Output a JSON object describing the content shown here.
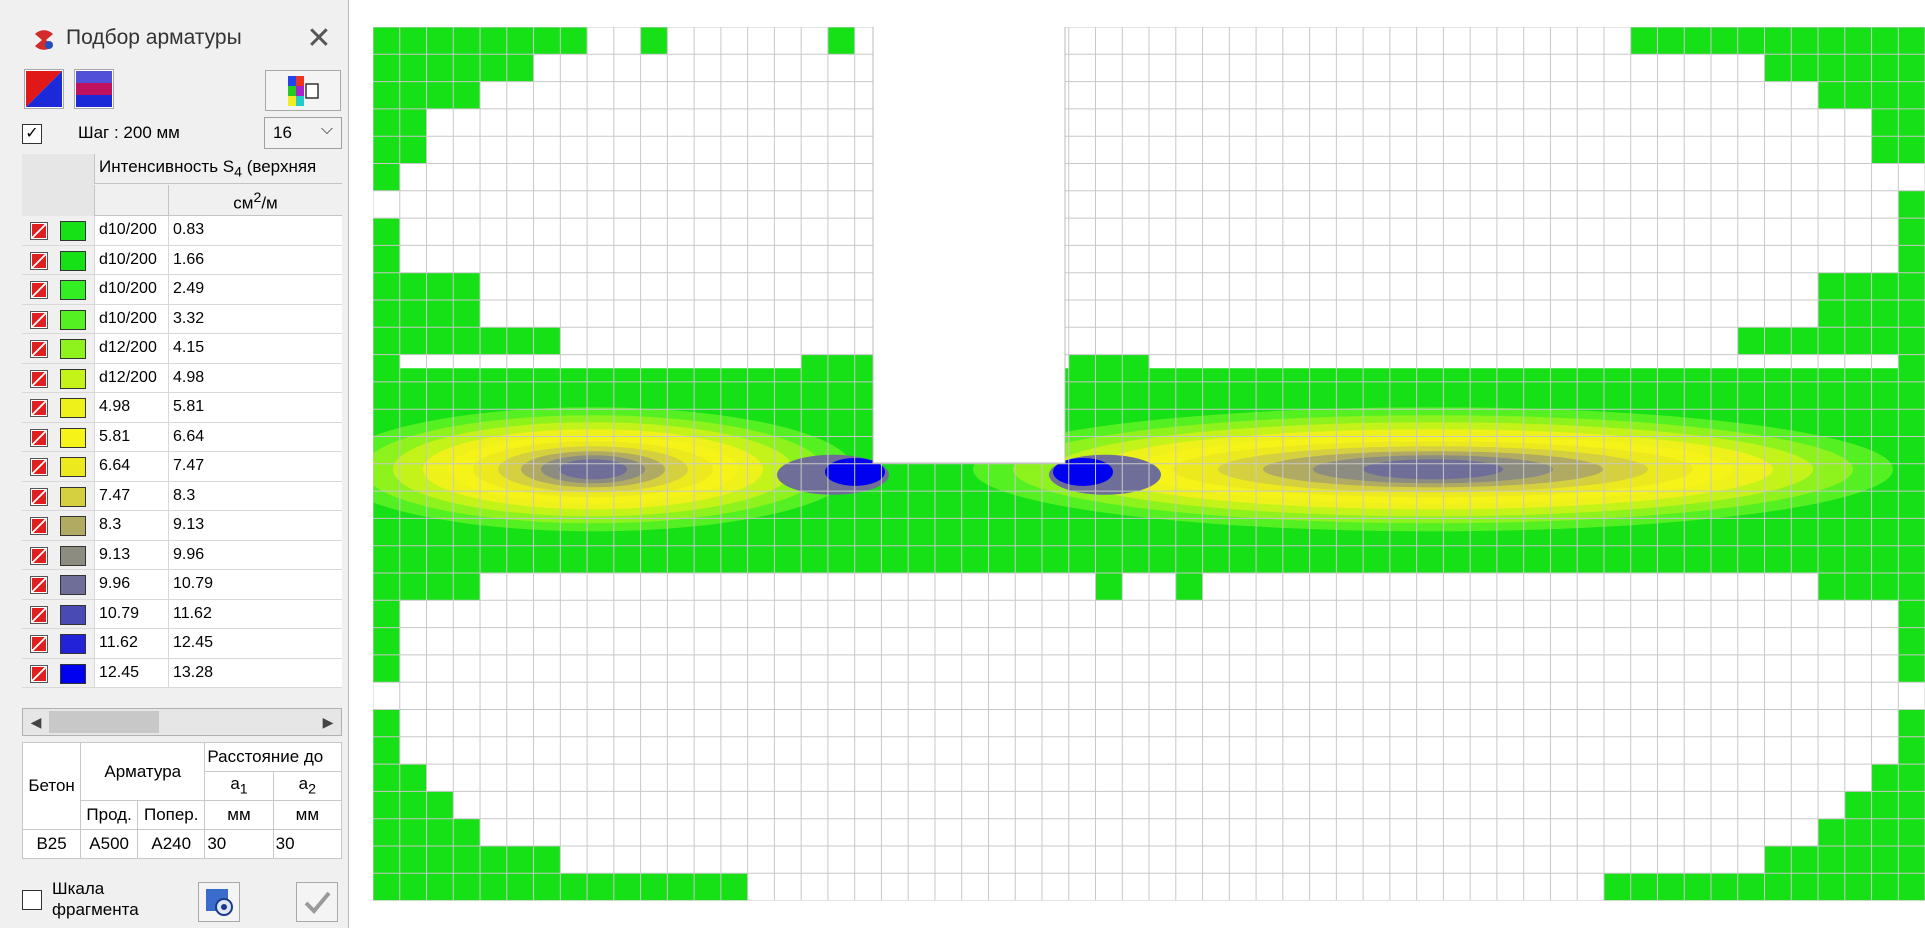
{
  "window": {
    "title": "Подбор арматуры",
    "close_symbol": "✕"
  },
  "step": {
    "checked": true,
    "label": "Шаг : 200 мм",
    "count_value": "16"
  },
  "scale_table": {
    "header": "Интенсивность S",
    "header_sub": "4",
    "header_suffix": " (верхняя",
    "unit": "см",
    "unit_sup": "2",
    "unit_suffix": "/м",
    "rows": [
      {
        "color": "#16e016",
        "c1": "d10/200",
        "c2": "0.83"
      },
      {
        "color": "#16e016",
        "c1": "d10/200",
        "c2": "1.66"
      },
      {
        "color": "#33ee22",
        "c1": "d10/200",
        "c2": "2.49"
      },
      {
        "color": "#55f022",
        "c1": "d10/200",
        "c2": "3.32"
      },
      {
        "color": "#8ef21c",
        "c1": "d12/200",
        "c2": "4.15"
      },
      {
        "color": "#c4f31a",
        "c1": "d12/200",
        "c2": "4.98"
      },
      {
        "color": "#eef21a",
        "c1": "4.98",
        "c2": "5.81"
      },
      {
        "color": "#f6f318",
        "c1": "5.81",
        "c2": "6.64"
      },
      {
        "color": "#ecea1e",
        "c1": "6.64",
        "c2": "7.47"
      },
      {
        "color": "#d4d040",
        "c1": "7.47",
        "c2": "8.3"
      },
      {
        "color": "#b0aa62",
        "c1": "8.3",
        "c2": "9.13"
      },
      {
        "color": "#8c8c80",
        "c1": "9.13",
        "c2": "9.96"
      },
      {
        "color": "#6e6e98",
        "c1": "9.96",
        "c2": "10.79"
      },
      {
        "color": "#4a4ab4",
        "c1": "10.79",
        "c2": "11.62"
      },
      {
        "color": "#2222d8",
        "c1": "11.62",
        "c2": "12.45"
      },
      {
        "color": "#0000f0",
        "c1": "12.45",
        "c2": "13.28"
      }
    ]
  },
  "materials": {
    "concrete_header": "Бетон",
    "rebar_header": "Арматура",
    "distance_header": "Расстояние до",
    "a1": "a",
    "a1_sub": "1",
    "a2": "a",
    "a2_sub": "2",
    "long_header": "Прод.",
    "trans_header": "Попер.",
    "unit_a1": "мм",
    "unit_a2": "мм",
    "concrete": "B25",
    "long": "A500",
    "trans": "A240",
    "a1_value": "30",
    "a2_value": "30"
  },
  "fragment_scale": {
    "checked": false,
    "label_line1": "Шкала",
    "label_line2": "фрагмента"
  },
  "colors": {
    "accent": "#1e6be0",
    "grid_line": "#c8c8c8",
    "base_green": "#16e016"
  }
}
